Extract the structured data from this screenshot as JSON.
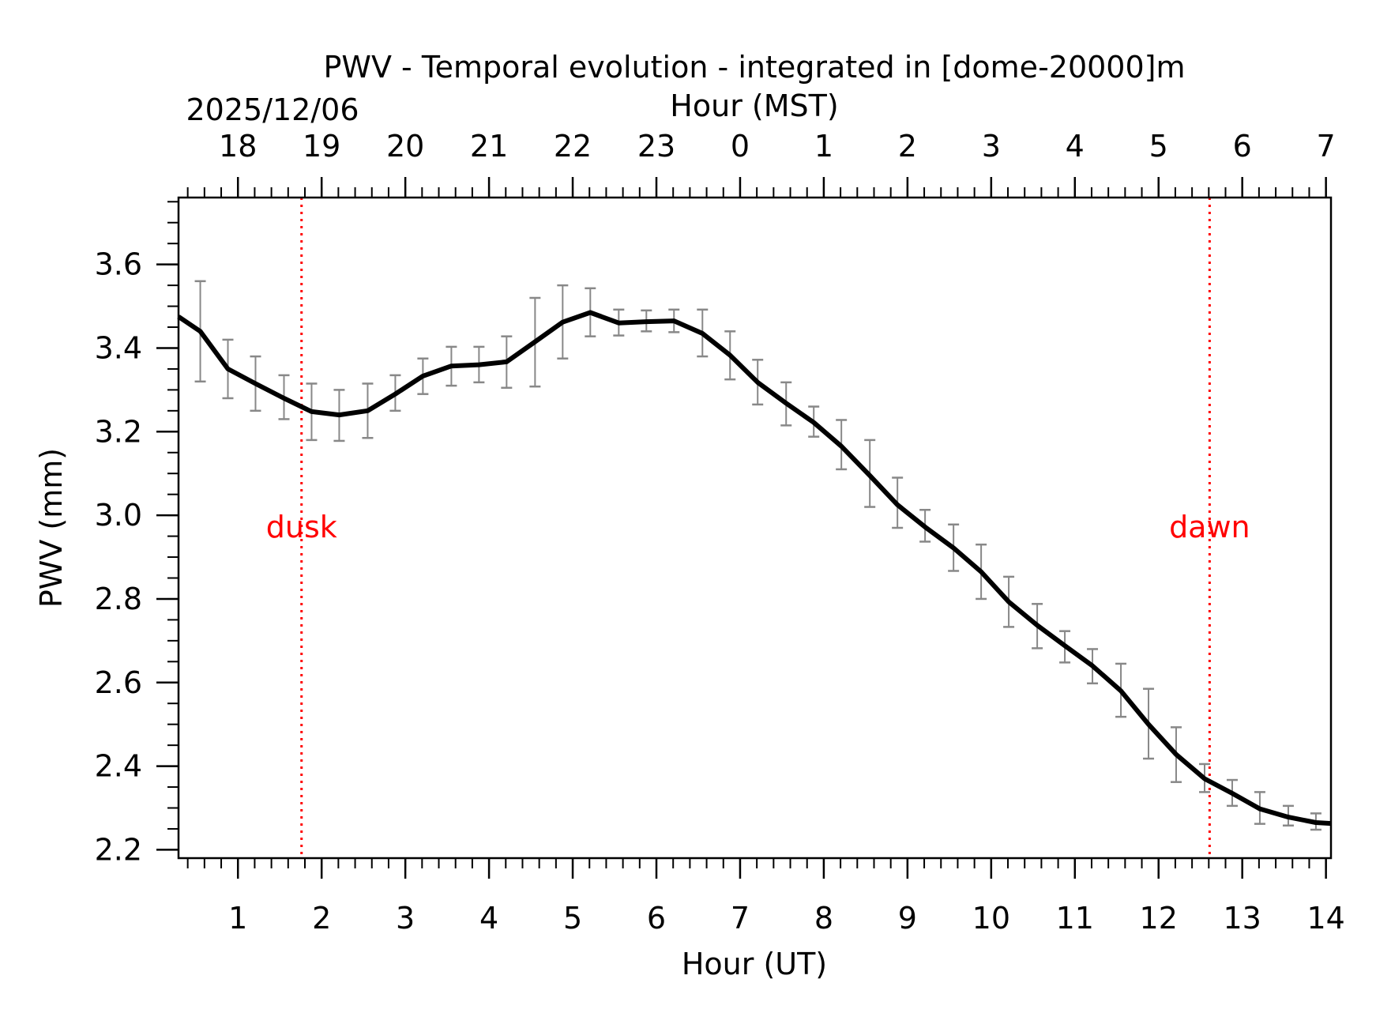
{
  "chart_data": {
    "type": "line",
    "title": "PWV - Temporal evolution - integrated in [dome-20000]m",
    "date_label": "2025/12/06",
    "xlabel": "Hour (UT)",
    "x2label": "Hour (MST)",
    "ylabel": "PWV (mm)",
    "xlim": [
      0.29,
      14.06
    ],
    "ylim": [
      2.18,
      3.76
    ],
    "x_ticks": [
      1,
      2,
      3,
      4,
      5,
      6,
      7,
      8,
      9,
      10,
      11,
      12,
      13,
      14
    ],
    "x_tick_labels": [
      "1",
      "2",
      "3",
      "4",
      "5",
      "6",
      "7",
      "8",
      "9",
      "10",
      "11",
      "12",
      "13",
      "14"
    ],
    "x2_tick_labels": [
      "18",
      "19",
      "20",
      "21",
      "22",
      "23",
      "0",
      "1",
      "2",
      "3",
      "4",
      "5",
      "6",
      "7"
    ],
    "y_ticks": [
      2.2,
      2.4,
      2.6,
      2.8,
      3.0,
      3.2,
      3.4,
      3.6
    ],
    "y_tick_labels": [
      "2.2",
      "2.4",
      "2.6",
      "2.8",
      "3.0",
      "3.2",
      "3.4",
      "3.6"
    ],
    "grid": false,
    "line_color": "#000000",
    "errorbar_color": "#888888",
    "series": [
      {
        "x": [
          0.29,
          0.55,
          0.88,
          1.21,
          1.55,
          1.88,
          2.21,
          2.55,
          2.88,
          3.21,
          3.55,
          3.88,
          4.21,
          4.55,
          4.88,
          5.21,
          5.55,
          5.88,
          6.21,
          6.55,
          6.88,
          7.21,
          7.55,
          7.88,
          8.21,
          8.55,
          8.88,
          9.21,
          9.55,
          9.88,
          10.21,
          10.55,
          10.88,
          11.21,
          11.55,
          11.88,
          12.21,
          12.55,
          12.88,
          13.21,
          13.55,
          13.88,
          14.06
        ],
        "y": [
          3.475,
          3.44,
          3.35,
          3.315,
          3.28,
          3.248,
          3.24,
          3.25,
          3.29,
          3.333,
          3.357,
          3.36,
          3.367,
          3.415,
          3.462,
          3.485,
          3.46,
          3.463,
          3.465,
          3.435,
          3.383,
          3.318,
          3.268,
          3.222,
          3.165,
          3.095,
          3.025,
          2.972,
          2.922,
          2.865,
          2.793,
          2.737,
          2.688,
          2.64,
          2.58,
          2.5,
          2.428,
          2.37,
          2.335,
          2.298,
          2.278,
          2.265,
          2.263
        ],
        "err_low": [
          null,
          3.32,
          3.28,
          3.25,
          3.23,
          3.18,
          3.178,
          3.185,
          3.25,
          3.29,
          3.31,
          3.318,
          3.305,
          3.308,
          3.375,
          3.428,
          3.43,
          3.44,
          3.438,
          3.38,
          3.325,
          3.265,
          3.215,
          3.188,
          3.11,
          3.02,
          2.97,
          2.937,
          2.867,
          2.8,
          2.733,
          2.682,
          2.648,
          2.598,
          2.518,
          2.418,
          2.362,
          2.338,
          2.305,
          2.262,
          2.258,
          2.248,
          null
        ],
        "err_high": [
          null,
          3.56,
          3.42,
          3.38,
          3.335,
          3.315,
          3.3,
          3.315,
          3.335,
          3.375,
          3.403,
          3.403,
          3.428,
          3.52,
          3.55,
          3.543,
          3.492,
          3.49,
          3.492,
          3.492,
          3.44,
          3.372,
          3.318,
          3.26,
          3.228,
          3.18,
          3.09,
          3.013,
          2.978,
          2.93,
          2.853,
          2.788,
          2.723,
          2.68,
          2.645,
          2.585,
          2.493,
          2.405,
          2.367,
          2.338,
          2.305,
          2.287,
          null
        ]
      }
    ],
    "annotations": [
      {
        "text": "dusk",
        "x": 1.76,
        "y": 2.97,
        "color": "#ff0000"
      },
      {
        "text": "dawn",
        "x": 12.61,
        "y": 2.97,
        "color": "#ff0000"
      }
    ]
  }
}
